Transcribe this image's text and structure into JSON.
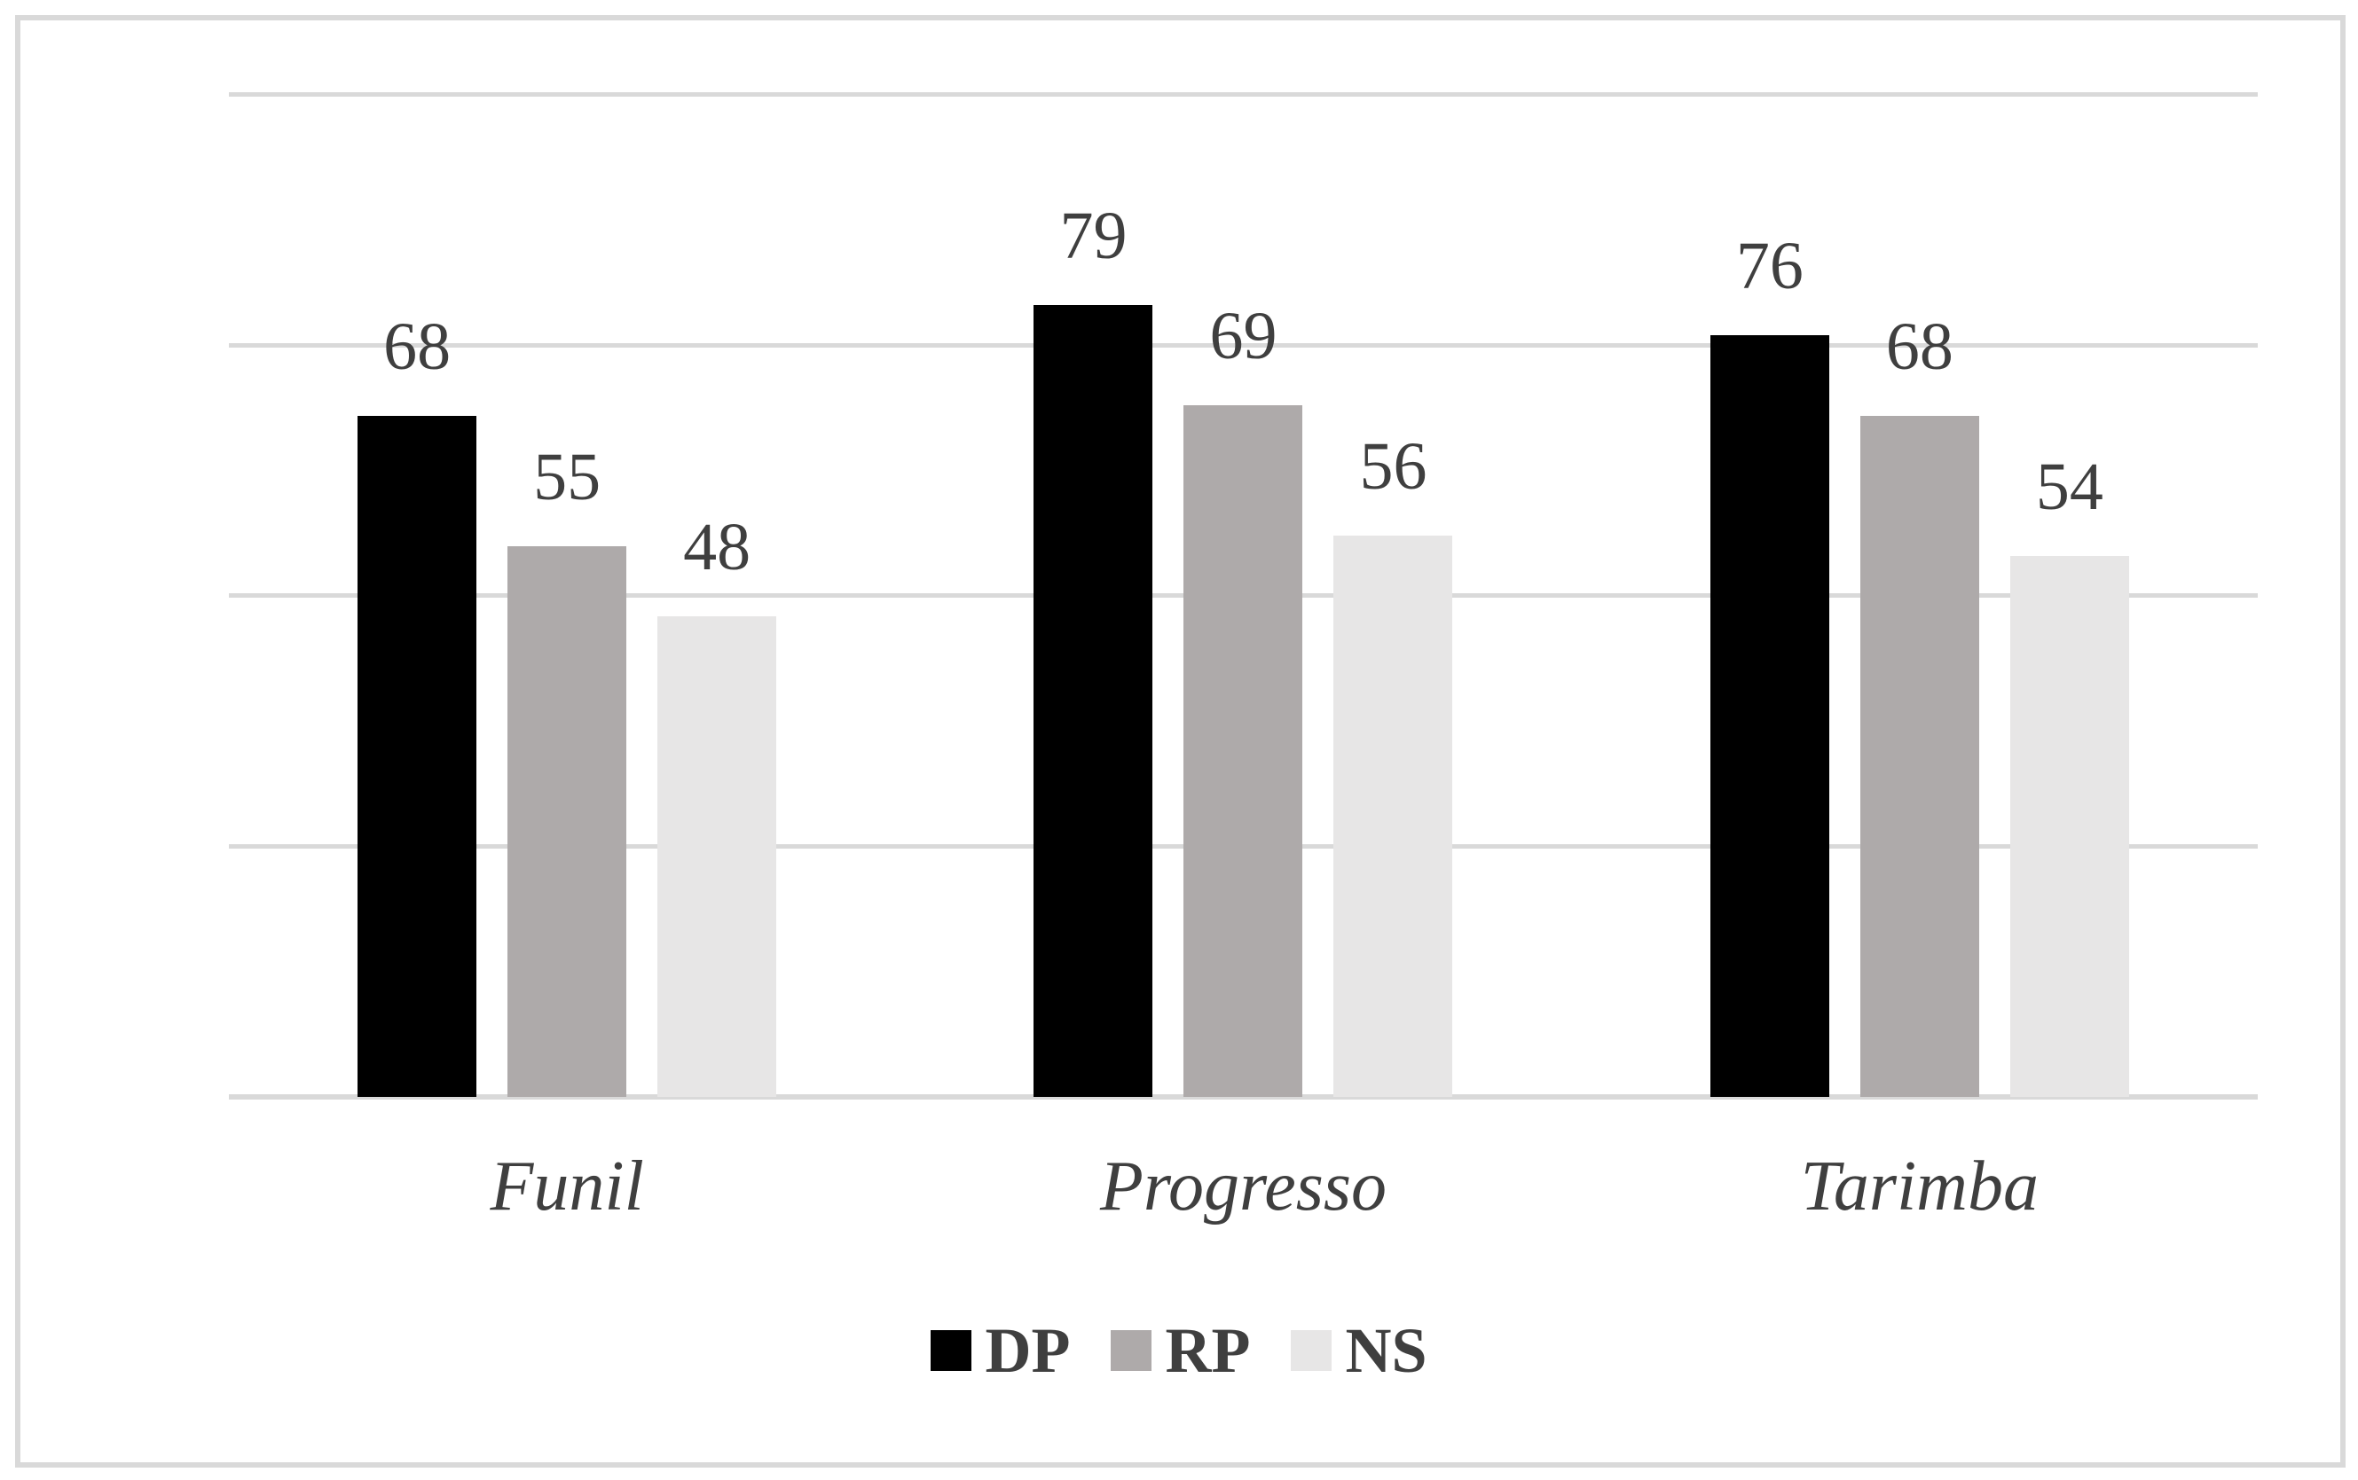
{
  "chart_data": {
    "type": "bar",
    "categories": [
      "Funil",
      "Progresso",
      "Tarimba"
    ],
    "series": [
      {
        "name": "DP",
        "color": "#000000",
        "values": [
          68,
          79,
          76
        ]
      },
      {
        "name": "RP",
        "color": "#AEAAAA",
        "values": [
          55,
          69,
          68
        ]
      },
      {
        "name": "NS",
        "color": "#E7E6E6",
        "values": [
          48,
          56,
          54
        ]
      }
    ],
    "title": "",
    "xlabel": "",
    "ylabel": "",
    "ylim": [
      0,
      100
    ],
    "gridline_step": 25,
    "grid": true,
    "y_tick_labels_visible": false,
    "legend_position": "bottom",
    "data_labels": true
  },
  "colors": {
    "gridline": "#D9D9D9",
    "frame_border": "#D9D9D9",
    "text": "#3F3F3F",
    "background": "#FFFFFF"
  }
}
